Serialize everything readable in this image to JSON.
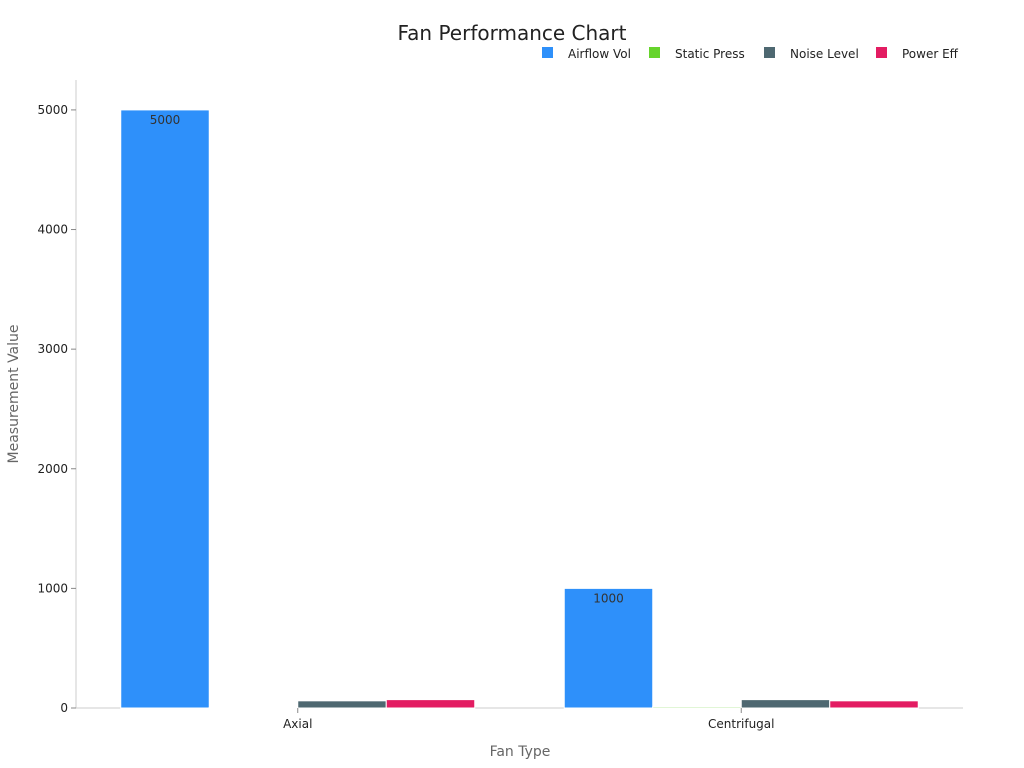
{
  "chart_data": {
    "type": "bar",
    "title": "Fan Performance Chart",
    "xlabel": "Fan Type",
    "ylabel": "Measurement Value",
    "categories": [
      "Axial",
      "Centrifugal"
    ],
    "series": [
      {
        "name": "Airflow Vol",
        "color": "#2E90FA",
        "values": [
          5000,
          1000
        ]
      },
      {
        "name": "Static Press",
        "color": "#66D42C",
        "values": [
          1,
          10
        ]
      },
      {
        "name": "Noise Level",
        "color": "#4E6871",
        "values": [
          60,
          70
        ]
      },
      {
        "name": "Power Eff",
        "color": "#E31C62",
        "values": [
          70,
          60
        ]
      }
    ],
    "data_labels": [
      "5000",
      "1000"
    ],
    "ylim": [
      0,
      5250
    ],
    "yticks": [
      0,
      1000,
      2000,
      3000,
      4000,
      5000
    ],
    "grid": false,
    "legend_position": "top-right"
  }
}
